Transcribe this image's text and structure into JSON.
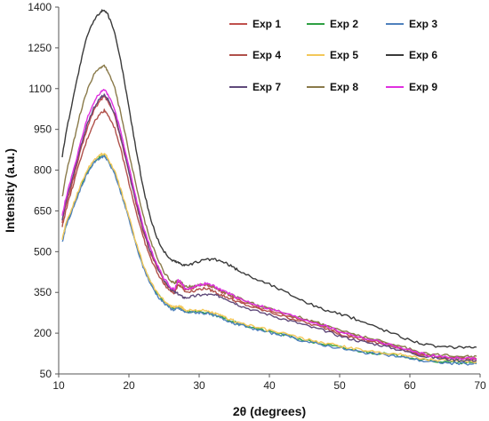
{
  "chart_data": {
    "type": "line",
    "title": "",
    "xlabel": "2θ (degrees)",
    "ylabel": "Intensity (a.u.)",
    "xlim": [
      10,
      70
    ],
    "ylim": [
      50,
      1400
    ],
    "xticks": [
      "10",
      "20",
      "30",
      "40",
      "50",
      "60",
      "70"
    ],
    "yticks": [
      "50",
      "200",
      "350",
      "500",
      "650",
      "800",
      "950",
      "1100",
      "1250",
      "1400"
    ],
    "grid": false,
    "legend_position": "top-right",
    "x": [
      10.5,
      11,
      12,
      13,
      14,
      15,
      16,
      16.5,
      17,
      18,
      19,
      20,
      21,
      22,
      23,
      24,
      25,
      26,
      26.5,
      27,
      27.5,
      28,
      29,
      30,
      31,
      32,
      33,
      34,
      35,
      36,
      38,
      40,
      42,
      44,
      46,
      48,
      50,
      52,
      54,
      56,
      58,
      60,
      62,
      64,
      66,
      68,
      69.5
    ],
    "series": [
      {
        "name": "Exp 1",
        "color": "#c0504d",
        "values": [
          610,
          670,
          760,
          860,
          950,
          1020,
          1060,
          1070,
          1055,
          1000,
          900,
          790,
          680,
          580,
          500,
          440,
          390,
          360,
          355,
          390,
          380,
          360,
          365,
          375,
          380,
          370,
          355,
          345,
          330,
          320,
          300,
          285,
          270,
          255,
          240,
          225,
          205,
          190,
          175,
          165,
          150,
          135,
          120,
          112,
          110,
          107,
          105
        ]
      },
      {
        "name": "Exp 2",
        "color": "#2ea043",
        "values": [
          540,
          595,
          660,
          730,
          790,
          830,
          850,
          855,
          840,
          790,
          710,
          625,
          530,
          450,
          390,
          345,
          315,
          295,
          290,
          295,
          290,
          280,
          280,
          280,
          275,
          270,
          260,
          250,
          240,
          232,
          218,
          205,
          195,
          180,
          168,
          158,
          148,
          138,
          130,
          125,
          118,
          112,
          100,
          96,
          92,
          90,
          90
        ]
      },
      {
        "name": "Exp 3",
        "color": "#4f81bd",
        "values": [
          535,
          590,
          655,
          725,
          785,
          828,
          848,
          852,
          835,
          785,
          705,
          620,
          525,
          445,
          385,
          340,
          310,
          290,
          285,
          292,
          286,
          277,
          277,
          276,
          272,
          267,
          257,
          247,
          237,
          229,
          215,
          202,
          192,
          177,
          165,
          155,
          145,
          135,
          127,
          122,
          115,
          108,
          97,
          93,
          89,
          87,
          87
        ]
      },
      {
        "name": "Exp 4",
        "color": "#b0504a",
        "values": [
          590,
          650,
          740,
          830,
          910,
          975,
          1010,
          1020,
          1005,
          955,
          860,
          755,
          650,
          555,
          480,
          425,
          380,
          352,
          348,
          380,
          372,
          352,
          355,
          362,
          365,
          355,
          342,
          332,
          320,
          310,
          292,
          278,
          262,
          248,
          232,
          218,
          198,
          184,
          170,
          160,
          146,
          132,
          118,
          110,
          108,
          105,
          103
        ]
      },
      {
        "name": "Exp 5",
        "color": "#f3c85a",
        "values": [
          545,
          600,
          668,
          738,
          798,
          838,
          858,
          860,
          845,
          795,
          715,
          630,
          535,
          455,
          395,
          350,
          320,
          300,
          295,
          300,
          295,
          285,
          285,
          285,
          280,
          275,
          265,
          255,
          245,
          237,
          223,
          210,
          200,
          185,
          173,
          163,
          153,
          143,
          135,
          130,
          123,
          117,
          105,
          101,
          97,
          95,
          95
        ]
      },
      {
        "name": "Exp 6",
        "color": "#3a3a3a",
        "values": [
          850,
          930,
          1060,
          1180,
          1290,
          1350,
          1385,
          1390,
          1375,
          1300,
          1180,
          1030,
          880,
          740,
          630,
          550,
          500,
          470,
          465,
          460,
          455,
          450,
          455,
          465,
          470,
          472,
          465,
          455,
          440,
          425,
          400,
          380,
          355,
          330,
          305,
          285,
          270,
          255,
          235,
          215,
          195,
          175,
          160,
          150,
          148,
          150,
          148
        ]
      },
      {
        "name": "Exp 7",
        "color": "#604a7b",
        "values": [
          620,
          680,
          775,
          875,
          965,
          1030,
          1068,
          1075,
          1060,
          1005,
          905,
          795,
          685,
          585,
          505,
          445,
          395,
          362,
          350,
          345,
          335,
          330,
          335,
          340,
          342,
          340,
          335,
          325,
          312,
          300,
          282,
          268,
          252,
          238,
          222,
          208,
          190,
          176,
          165,
          155,
          142,
          130,
          115,
          108,
          103,
          100,
          100
        ]
      },
      {
        "name": "Exp 8",
        "color": "#8a7a4a",
        "values": [
          700,
          780,
          890,
          1000,
          1090,
          1150,
          1180,
          1185,
          1165,
          1100,
          990,
          865,
          745,
          635,
          545,
          478,
          425,
          390,
          385,
          395,
          388,
          370,
          372,
          378,
          380,
          372,
          360,
          348,
          336,
          325,
          306,
          290,
          275,
          260,
          245,
          230,
          212,
          198,
          182,
          170,
          156,
          142,
          128,
          120,
          118,
          116,
          115
        ]
      },
      {
        "name": "Exp 9",
        "color": "#e030e0",
        "values": [
          630,
          695,
          790,
          890,
          985,
          1050,
          1090,
          1095,
          1080,
          1025,
          925,
          812,
          700,
          598,
          516,
          455,
          402,
          368,
          360,
          395,
          385,
          362,
          368,
          378,
          382,
          374,
          360,
          350,
          336,
          324,
          306,
          290,
          274,
          258,
          242,
          226,
          206,
          192,
          178,
          166,
          150,
          136,
          122,
          114,
          110,
          108,
          106
        ]
      }
    ]
  }
}
